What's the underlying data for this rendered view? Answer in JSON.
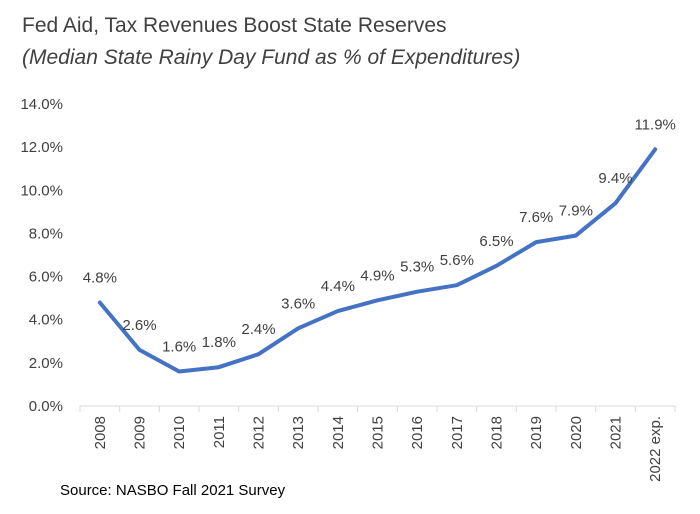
{
  "header": {
    "title": "Fed Aid, Tax Revenues Boost State Reserves",
    "subtitle": "(Median State Rainy Day Fund as % of Expenditures)"
  },
  "footer": {
    "source": "Source: NASBO Fall 2021 Survey"
  },
  "chart_data": {
    "type": "line",
    "title": "Fed Aid, Tax Revenues Boost State Reserves",
    "subtitle": "(Median State Rainy Day Fund as % of Expenditures)",
    "xlabel": "",
    "ylabel": "",
    "categories": [
      "2008",
      "2009",
      "2010",
      "2011",
      "2012",
      "2013",
      "2014",
      "2015",
      "2016",
      "2017",
      "2018",
      "2019",
      "2020",
      "2021",
      "2022 exp."
    ],
    "series": [
      {
        "values": [
          4.8,
          2.6,
          1.6,
          1.8,
          2.4,
          3.6,
          4.4,
          4.9,
          5.3,
          5.6,
          6.5,
          7.6,
          7.9,
          9.4,
          11.9
        ]
      }
    ],
    "data_labels": [
      "4.8%",
      "2.6%",
      "1.6%",
      "1.8%",
      "2.4%",
      "3.6%",
      "4.4%",
      "4.9%",
      "5.3%",
      "5.6%",
      "6.5%",
      "7.6%",
      "7.9%",
      "9.4%",
      "11.9%"
    ],
    "y_ticks": [
      "0.0%",
      "2.0%",
      "4.0%",
      "6.0%",
      "8.0%",
      "10.0%",
      "12.0%",
      "14.0%"
    ],
    "ylim": [
      0,
      14
    ],
    "grid": false,
    "legend": "none",
    "line_color": "#4472C4",
    "axis_color": "#D9D9D9"
  }
}
